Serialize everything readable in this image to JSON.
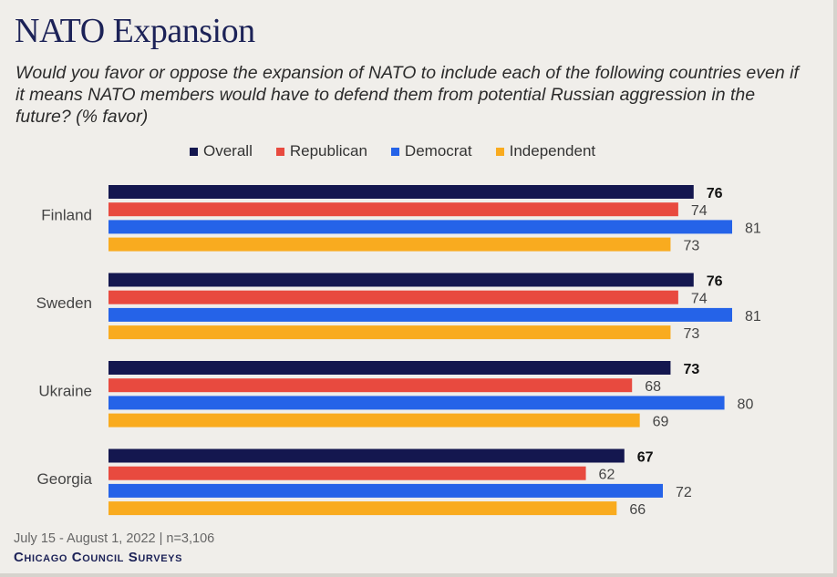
{
  "title": "NATO Expansion",
  "subtitle": "Would you favor or oppose the expansion of NATO to include each of the following countries even if it means NATO members would have to defend them from potential Russian aggression in the future? (% favor)",
  "footer": {
    "date_n": "July 15 - August 1, 2022 | n=3,106",
    "brand": "Chicago Council Surveys"
  },
  "colors": {
    "Overall": "#14174f",
    "Republican": "#e84a3f",
    "Democrat": "#2563e8",
    "Independent": "#f9ab1f"
  },
  "chart_data": {
    "type": "bar",
    "orientation": "horizontal",
    "categories": [
      "Finland",
      "Sweden",
      "Ukraine",
      "Georgia"
    ],
    "series": [
      {
        "name": "Overall",
        "values": [
          76,
          76,
          73,
          67
        ]
      },
      {
        "name": "Republican",
        "values": [
          74,
          74,
          68,
          62
        ]
      },
      {
        "name": "Democrat",
        "values": [
          81,
          81,
          80,
          72
        ]
      },
      {
        "name": "Independent",
        "values": [
          73,
          73,
          69,
          66
        ]
      }
    ],
    "xlim": [
      0,
      100
    ],
    "legend_position": "top",
    "grid": false,
    "data_labels": true
  }
}
